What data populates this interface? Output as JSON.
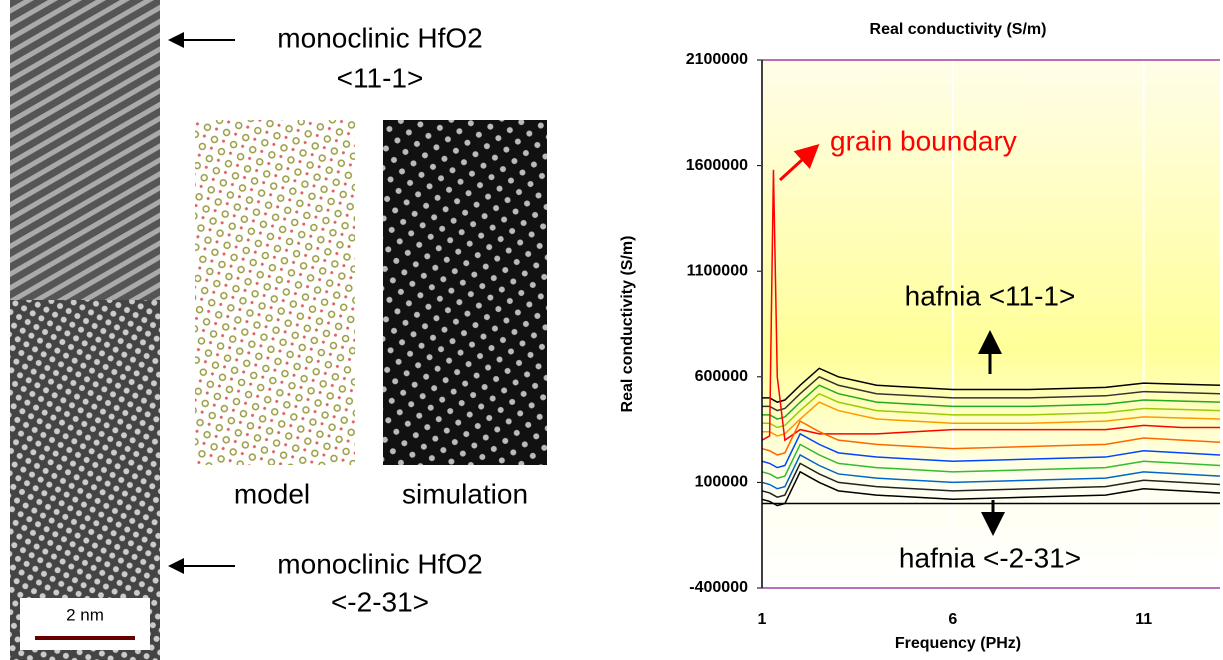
{
  "image_labels": {
    "top_phase": "monoclinic HfO2",
    "top_direction": "<11-1>",
    "model": "model",
    "simulation": "simulation",
    "bottom_phase": "monoclinic HfO2",
    "bottom_direction": "<-2-31>",
    "scale_bar": "2 nm"
  },
  "chart_data": {
    "type": "line",
    "title": "Real conductivity (S/m)",
    "x_label": "Frequency (PHz)",
    "y_label": "Real conductivity (S/m)",
    "annotations": [
      "grain boundary",
      "hafnia <11-1>",
      "hafnia <-2-31>"
    ],
    "x": [
      1,
      1.2,
      1.3,
      1.4,
      1.6,
      2,
      2.5,
      3,
      4,
      6,
      8,
      10,
      11,
      12,
      13
    ],
    "xlim": [
      1,
      13
    ],
    "xticks": [
      1,
      6,
      11
    ],
    "ylim": [
      -400000,
      2100000
    ],
    "yticks": [
      2100000,
      1600000,
      1100000,
      600000,
      100000,
      -400000
    ],
    "grid": true,
    "zero_line": true,
    "series": [
      {
        "color": "#000000",
        "values": [
          500000,
          500000,
          490000,
          480000,
          490000,
          560000,
          640000,
          600000,
          560000,
          540000,
          540000,
          550000,
          570000,
          565000,
          560000
        ]
      },
      {
        "color": "#333333",
        "values": [
          460000,
          460000,
          450000,
          440000,
          450000,
          520000,
          600000,
          560000,
          520000,
          500000,
          500000,
          510000,
          530000,
          525000,
          520000
        ]
      },
      {
        "color": "#22aa22",
        "values": [
          420000,
          420000,
          410000,
          400000,
          410000,
          480000,
          560000,
          520000,
          480000,
          460000,
          460000,
          470000,
          490000,
          485000,
          480000
        ]
      },
      {
        "color": "#99cc00",
        "values": [
          380000,
          380000,
          370000,
          360000,
          370000,
          440000,
          520000,
          480000,
          440000,
          420000,
          420000,
          430000,
          450000,
          445000,
          440000
        ]
      },
      {
        "color": "#ff9900",
        "values": [
          340000,
          340000,
          330000,
          320000,
          330000,
          400000,
          480000,
          440000,
          400000,
          380000,
          380000,
          390000,
          410000,
          405000,
          400000
        ]
      },
      {
        "color": "#ff0000",
        "values": [
          300000,
          320000,
          1580000,
          600000,
          300000,
          350000,
          330000,
          330000,
          330000,
          350000,
          350000,
          350000,
          370000,
          360000,
          360000
        ]
      },
      {
        "color": "#ff6600",
        "values": [
          260000,
          250000,
          240000,
          230000,
          240000,
          390000,
          340000,
          300000,
          280000,
          260000,
          270000,
          280000,
          310000,
          300000,
          290000
        ]
      },
      {
        "color": "#0044ff",
        "values": [
          200000,
          190000,
          180000,
          170000,
          180000,
          330000,
          280000,
          240000,
          220000,
          200000,
          210000,
          220000,
          250000,
          240000,
          230000
        ]
      },
      {
        "color": "#33bb33",
        "values": [
          150000,
          140000,
          130000,
          120000,
          130000,
          280000,
          230000,
          190000,
          170000,
          150000,
          160000,
          170000,
          200000,
          190000,
          180000
        ]
      },
      {
        "color": "#0066cc",
        "values": [
          100000,
          90000,
          80000,
          70000,
          80000,
          230000,
          180000,
          140000,
          120000,
          100000,
          110000,
          120000,
          150000,
          140000,
          130000
        ]
      },
      {
        "color": "#222222",
        "values": [
          60000,
          50000,
          40000,
          30000,
          40000,
          190000,
          140000,
          100000,
          80000,
          60000,
          70000,
          80000,
          110000,
          100000,
          90000
        ]
      },
      {
        "color": "#000000",
        "values": [
          20000,
          10000,
          0,
          -10000,
          0,
          150000,
          100000,
          60000,
          40000,
          20000,
          30000,
          40000,
          70000,
          60000,
          50000
        ]
      }
    ]
  }
}
